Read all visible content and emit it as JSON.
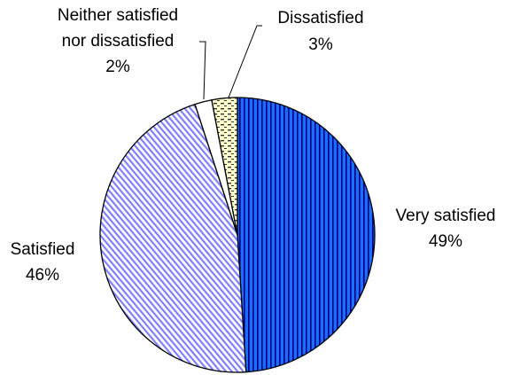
{
  "chart_data": {
    "type": "pie",
    "title": "",
    "slices": [
      {
        "label_lines": [
          "Very satisfied"
        ],
        "value_label": "49%",
        "value": 49,
        "color": "#1a6dff",
        "pattern": "vertical-stripes"
      },
      {
        "label_lines": [
          "Satisfied"
        ],
        "value_label": "46%",
        "value": 46,
        "color": "#9b9bff",
        "pattern": "diagonal-hatch"
      },
      {
        "label_lines": [
          "Neither satisfied",
          "nor dissatisfied"
        ],
        "value_label": "2%",
        "value": 2,
        "color": "#ffffff",
        "pattern": "solid"
      },
      {
        "label_lines": [
          "Dissatisfied"
        ],
        "value_label": "3%",
        "value": 3,
        "color": "#ffffcc",
        "pattern": "dashes"
      }
    ],
    "start_angle_deg": 0,
    "direction": "clockwise",
    "legend": "none",
    "data_labels": "outside with category name and percent"
  }
}
